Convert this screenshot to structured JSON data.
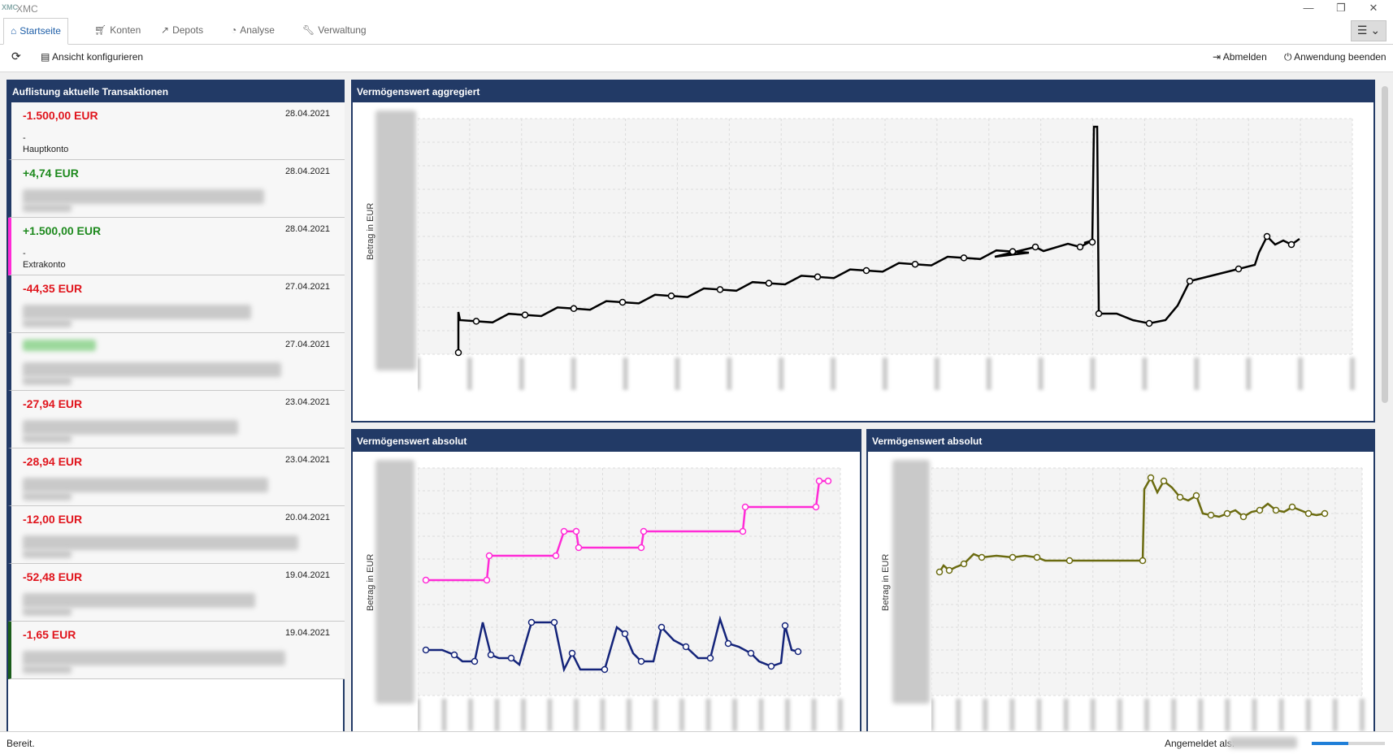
{
  "window": {
    "title": "XMC",
    "logo": "XMC"
  },
  "tabs": [
    {
      "label": "Startseite",
      "icon": "home-icon"
    },
    {
      "label": "Konten",
      "icon": "cart-icon"
    },
    {
      "label": "Depots",
      "icon": "trend-icon"
    },
    {
      "label": "Analyse",
      "icon": "pie-icon"
    },
    {
      "label": "Verwaltung",
      "icon": "wrench-icon"
    }
  ],
  "toolbar": {
    "configure_label": "Ansicht konfigurieren",
    "logout_label": "Abmelden",
    "quit_label": "Anwendung beenden"
  },
  "transactions_panel": {
    "title": "Auflistung aktuelle Transaktionen",
    "items": [
      {
        "amount": "-1.500,00 EUR",
        "sign": "neg",
        "date": "28.04.2021",
        "line1": "-",
        "line2": "Hauptkonto",
        "accent": "#223a66"
      },
      {
        "amount": "+4,74 EUR",
        "sign": "pos",
        "date": "28.04.2021",
        "line1": "",
        "line2": "",
        "accent": "#223a66"
      },
      {
        "amount": "+1.500,00 EUR",
        "sign": "pos",
        "date": "28.04.2021",
        "line1": "-",
        "line2": "Extrakonto",
        "accent": "#ff2bd6"
      },
      {
        "amount": "-44,35 EUR",
        "sign": "neg",
        "date": "27.04.2021",
        "line1": "",
        "line2": "",
        "accent": "#223a66"
      },
      {
        "amount": "",
        "sign": "pos",
        "date": "27.04.2021",
        "line1": "",
        "line2": "",
        "accent": "#223a66"
      },
      {
        "amount": "-27,94 EUR",
        "sign": "neg",
        "date": "23.04.2021",
        "line1": "",
        "line2": "",
        "accent": "#223a66"
      },
      {
        "amount": "-28,94 EUR",
        "sign": "neg",
        "date": "23.04.2021",
        "line1": "",
        "line2": "",
        "accent": "#223a66"
      },
      {
        "amount": "-12,00 EUR",
        "sign": "neg",
        "date": "20.04.2021",
        "line1": "",
        "line2": "",
        "accent": "#223a66"
      },
      {
        "amount": "-52,48 EUR",
        "sign": "neg",
        "date": "19.04.2021",
        "line1": "",
        "line2": "",
        "accent": "#223a66"
      },
      {
        "amount": "-1,65 EUR",
        "sign": "neg",
        "date": "19.04.2021",
        "line1": "",
        "line2": "",
        "accent": "#1a5c1a"
      }
    ]
  },
  "chart_agg": {
    "title": "Vermögenswert aggregiert",
    "ylabel": "Betrag in EUR",
    "line_color": "#000000"
  },
  "chart_abs1": {
    "title": "Vermögenswert absolut",
    "ylabel": "Betrag in EUR",
    "colors": [
      "#ff2bd6",
      "#14247a"
    ]
  },
  "chart_abs2": {
    "title": "Vermögenswert absolut",
    "ylabel": "Betrag in EUR",
    "colors": [
      "#6b6b10"
    ]
  },
  "status": {
    "text": "Bereit.",
    "logged_in_label": "Angemeldet als:",
    "progress": 0.5
  }
}
